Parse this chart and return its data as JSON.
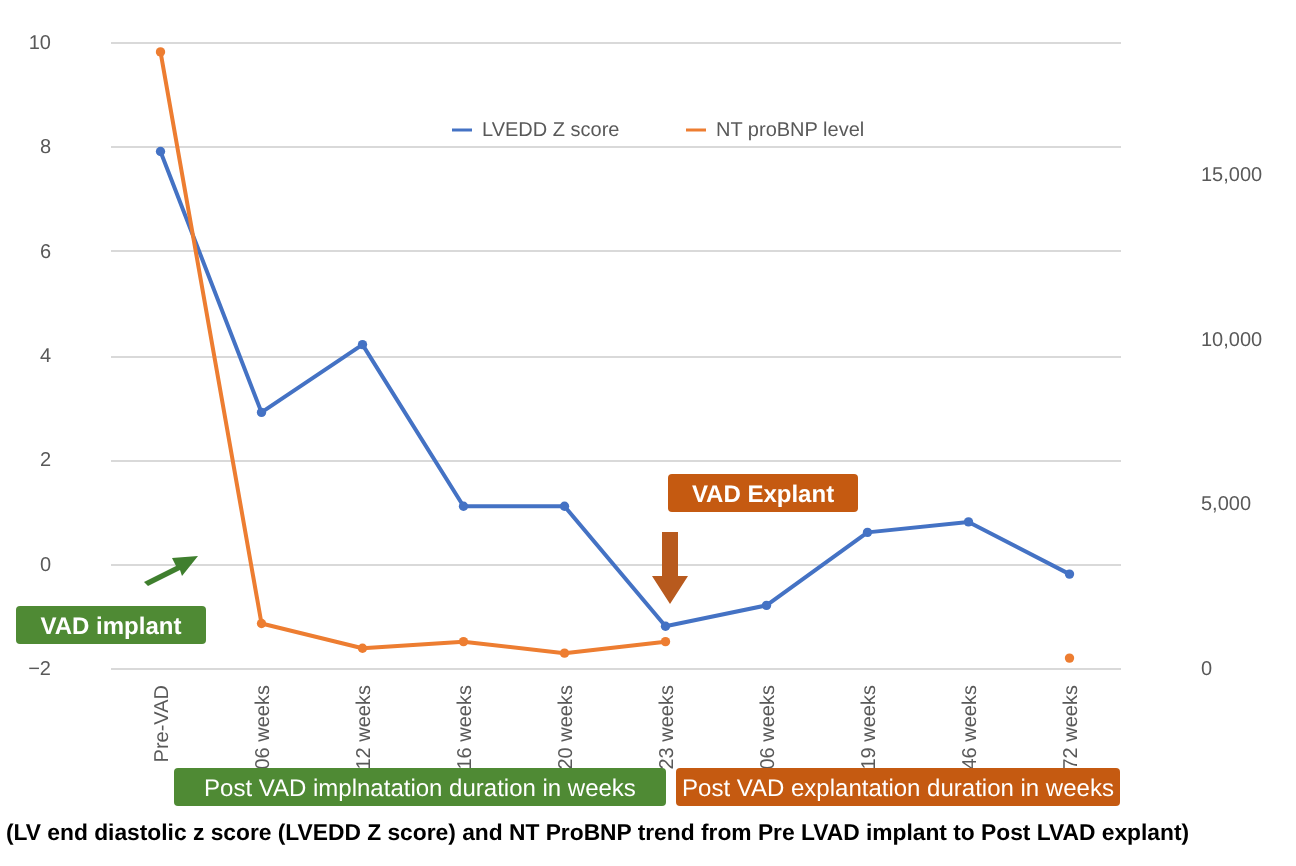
{
  "chart_data": {
    "type": "line",
    "categories": [
      "Pre-VAD",
      "06 weeks",
      "12 weeks",
      "16 weeks",
      "20 weeks",
      "23 weeks",
      "06 weeks",
      "19 weeks",
      "46 weeks",
      "72 weeks"
    ],
    "series": [
      {
        "name": "LVEDD Z score",
        "color": "#4472c4",
        "values": [
          7.9,
          2.9,
          4.2,
          1.1,
          1.1,
          -1.2,
          -0.8,
          0.6,
          0.8,
          -0.2
        ]
      },
      {
        "name": "NT proBNP level",
        "color": "#ed7d31",
        "axis": "y2",
        "values": [
          18700,
          1350,
          600,
          800,
          450,
          800,
          null,
          null,
          null,
          300
        ]
      }
    ],
    "ylim": [
      -2,
      10
    ],
    "yticks": [
      -2,
      0,
      2,
      4,
      6,
      8,
      10
    ],
    "y2lim": [
      0,
      19000
    ],
    "y2ticks": [
      {
        "value": 0,
        "label": "0"
      },
      {
        "value": 5000,
        "label": "5,000"
      },
      {
        "value": 10000,
        "label": "10,000"
      },
      {
        "value": 15000,
        "label": "15,000"
      }
    ],
    "grid": "y",
    "legend": "top",
    "marker": "circle",
    "line_style": "solid",
    "annotations": [
      "VAD implant",
      "VAD Explant",
      "Post VAD implnatation duration in weeks",
      "Post VAD explantation duration in weeks",
      "(LV end diastolic z score (LVEDD Z score) and NT ProBNP trend from Pre LVAD implant to Post LVAD explant)"
    ]
  }
}
